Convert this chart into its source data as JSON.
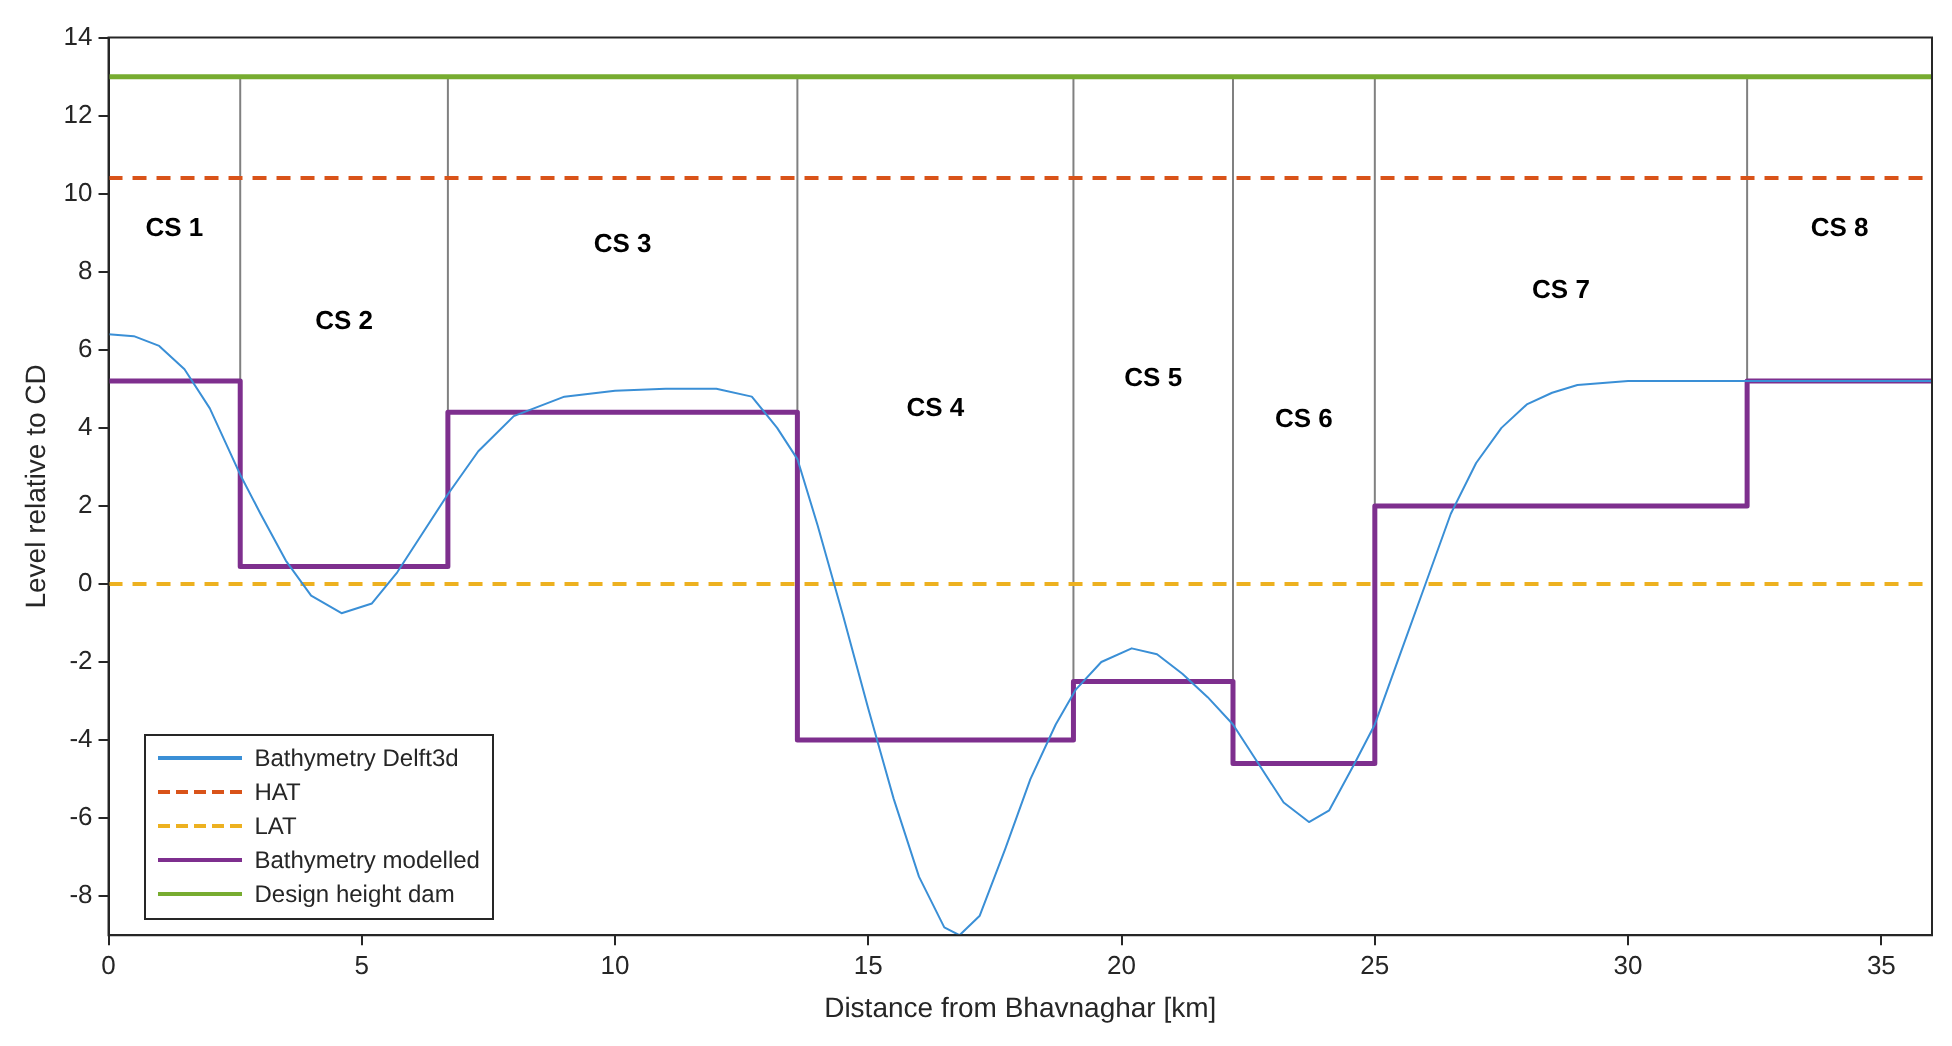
{
  "chart_data": {
    "type": "line",
    "xlabel": "Distance from Bhavnaghar [km]",
    "ylabel": "Level relative to CD",
    "xlim": [
      0,
      36
    ],
    "ylim": [
      -9,
      14
    ],
    "xticks": [
      0,
      5,
      10,
      15,
      20,
      25,
      30,
      35
    ],
    "yticks": [
      -8,
      -6,
      -4,
      -2,
      0,
      2,
      4,
      6,
      8,
      10,
      12,
      14
    ],
    "grid": false,
    "legend": "bottom left",
    "marker": "none",
    "series": [
      {
        "name": "Bathymetry Delft3d",
        "color": "#3a8fd6",
        "x": [
          0,
          0.5,
          1,
          1.5,
          2,
          2.6,
          3,
          3.5,
          4,
          4.6,
          5.2,
          5.7,
          6.2,
          6.7,
          7.3,
          8,
          9,
          10,
          11,
          12,
          12.7,
          13.2,
          13.6,
          14,
          14.5,
          15,
          15.5,
          16,
          16.5,
          16.8,
          17.2,
          17.7,
          18.2,
          18.7,
          19.1,
          19.6,
          20.2,
          20.7,
          21.2,
          21.7,
          22.2,
          22.7,
          23.2,
          23.7,
          24.1,
          24.6,
          25,
          25.5,
          26,
          26.5,
          27,
          27.5,
          28,
          28.5,
          29,
          30,
          31,
          36
        ],
        "values": [
          6.4,
          6.35,
          6.1,
          5.5,
          4.5,
          2.8,
          1.8,
          0.6,
          -0.3,
          -0.75,
          -0.5,
          0.3,
          1.3,
          2.3,
          3.4,
          4.3,
          4.8,
          4.95,
          5,
          5,
          4.8,
          4,
          3.2,
          1.5,
          -0.8,
          -3.2,
          -5.5,
          -7.5,
          -8.8,
          -9,
          -8.5,
          -6.8,
          -5,
          -3.6,
          -2.7,
          -2,
          -1.65,
          -1.8,
          -2.3,
          -2.9,
          -3.6,
          -4.6,
          -5.6,
          -6.1,
          -5.8,
          -4.6,
          -3.6,
          -1.8,
          0,
          1.8,
          3.1,
          4,
          4.6,
          4.9,
          5.1,
          5.2,
          5.2,
          5.2
        ]
      },
      {
        "name": "HAT",
        "color": "#d95319",
        "line_style": "dashed",
        "x": [
          0,
          36
        ],
        "values": [
          10.4,
          10.4
        ]
      },
      {
        "name": "LAT",
        "color": "#edb120",
        "line_style": "dashed",
        "x": [
          0,
          36
        ],
        "values": [
          0,
          0
        ]
      },
      {
        "name": "Bathymetry modelled",
        "color": "#7e2f8e",
        "type": "step",
        "x": [
          0,
          2.6,
          6.7,
          13.6,
          19.05,
          22.2,
          25,
          32.35,
          36
        ],
        "values": [
          5.2,
          0.45,
          4.4,
          -4,
          -2.5,
          -4.6,
          2,
          5.2,
          5.2
        ]
      },
      {
        "name": "Design height dam",
        "color": "#77ac30",
        "x": [
          0,
          36
        ],
        "values": [
          13,
          13
        ]
      }
    ],
    "ref_lines": [
      {
        "axis": "x",
        "value": 2.6,
        "color": "#808080"
      },
      {
        "axis": "x",
        "value": 6.7,
        "color": "#808080"
      },
      {
        "axis": "x",
        "value": 13.6,
        "color": "#808080"
      },
      {
        "axis": "x",
        "value": 19.05,
        "color": "#808080"
      },
      {
        "axis": "x",
        "value": 22.2,
        "color": "#808080"
      },
      {
        "axis": "x",
        "value": 25,
        "color": "#808080"
      },
      {
        "axis": "x",
        "value": 32.35,
        "color": "#808080"
      }
    ],
    "annotations": [
      "CS 1",
      "CS 2",
      "CS 3",
      "CS 4",
      "CS 5",
      "CS 6",
      "CS 7",
      "CS 8"
    ]
  }
}
